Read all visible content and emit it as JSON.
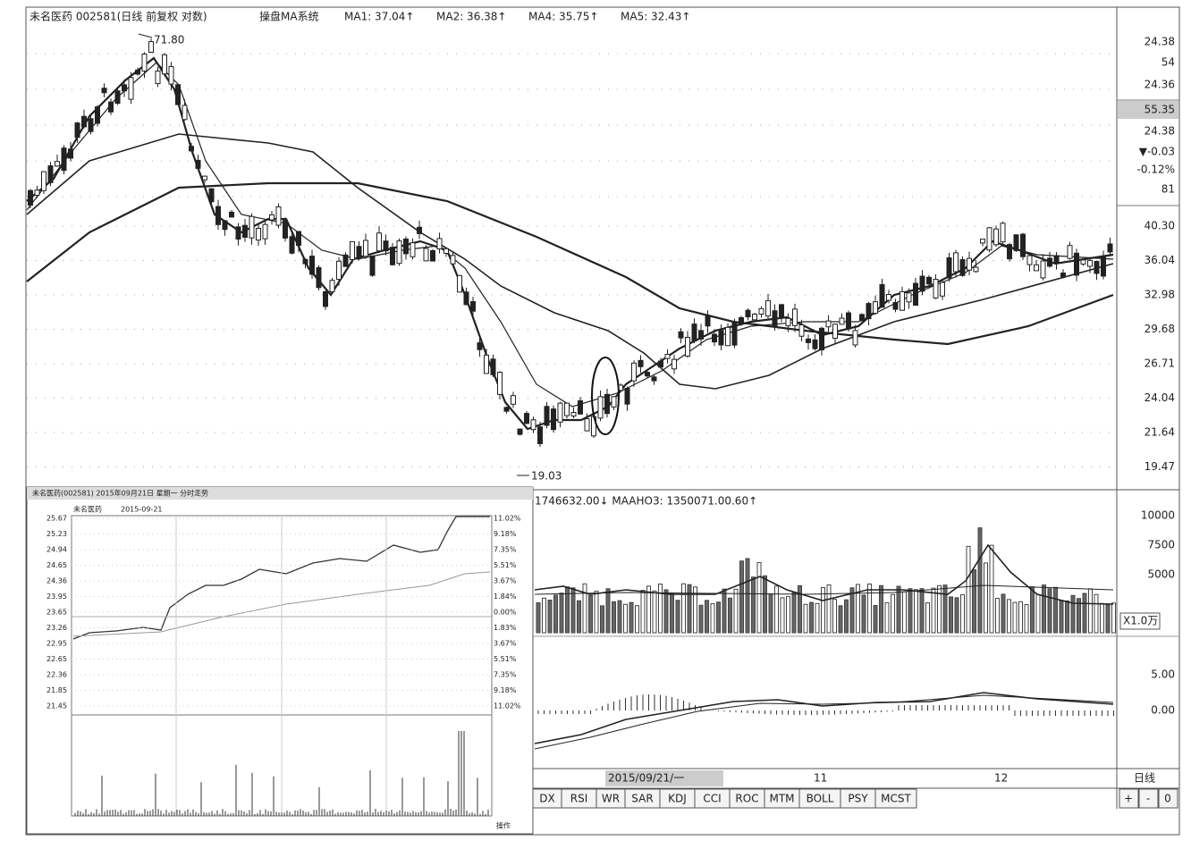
{
  "header": {
    "stock": "未名医药 002581(日线 前复权 对数)",
    "system": "操盘MA系统",
    "ma": [
      "MA1: 37.04↑",
      "MA2: 36.38↑",
      "MA4: 35.75↑",
      "MA5: 32.43↑"
    ]
  },
  "quote_panel": [
    "24.38",
    "54",
    "24.36",
    "55.35",
    "24.38",
    "▼-0.03",
    "-0.12%",
    "81"
  ],
  "price_axis": [
    "40.30",
    "36.04",
    "32.98",
    "29.68",
    "26.71",
    "24.04",
    "21.64",
    "19.47"
  ],
  "annotations": {
    "high": "71.80",
    "low": "19.03"
  },
  "volume": {
    "header": "1746632.00↓ MAAHO3: 1350071.00.60↑",
    "axis": [
      "10000",
      "7500",
      "5000"
    ],
    "unit": "X1.0万"
  },
  "macd_axis": [
    "5.00",
    "0.00"
  ],
  "date_bar": {
    "date": "2015/09/21/一",
    "months": [
      "11",
      "12"
    ],
    "period": "日线"
  },
  "tabs": [
    "DX",
    "RSI",
    "WR",
    "SAR",
    "KDJ",
    "CCI",
    "ROC",
    "MTM",
    "BOLL",
    "PSY",
    "MCST"
  ],
  "buttons": [
    "+",
    "-",
    "0"
  ],
  "inset": {
    "title": "未名医药(002581) 2015年09月21日 星期一 分时走势",
    "name": "未名医药",
    "date": "2015-09-21",
    "price_axis": [
      "25.67",
      "25.23",
      "24.94",
      "24.65",
      "24.36",
      "23.95",
      "23.65",
      "23.26",
      "22.95",
      "22.65",
      "22.36",
      "21.85",
      "21.45"
    ],
    "percent_axis": [
      "11.02%",
      "9.18%",
      "7.35%",
      "5.51%",
      "3.67%",
      "1.84%",
      "0.00%",
      "1.83%",
      "3.67%",
      "5.51%",
      "7.35%",
      "9.18%",
      "11.02%"
    ],
    "corner": "操作"
  }
}
